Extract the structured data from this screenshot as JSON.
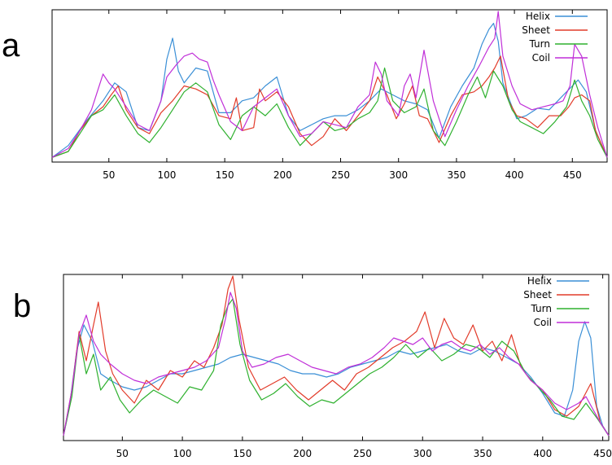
{
  "panels": [
    {
      "letter": "a"
    },
    {
      "letter": "b"
    }
  ],
  "chart_data": [
    {
      "type": "line",
      "title": "",
      "xlabel": "",
      "ylabel": "",
      "xlim": [
        1,
        480
      ],
      "ylim": [
        0,
        1
      ],
      "xticks": [
        50,
        100,
        150,
        200,
        250,
        300,
        350,
        400,
        450
      ],
      "grid": false,
      "legend_position": "top-right",
      "series": [
        {
          "name": "Helix",
          "color": "#3a8fd6",
          "x": [
            1,
            15,
            30,
            45,
            55,
            65,
            75,
            85,
            95,
            100,
            105,
            110,
            115,
            125,
            135,
            145,
            155,
            165,
            175,
            185,
            195,
            205,
            215,
            225,
            235,
            245,
            255,
            265,
            275,
            285,
            295,
            305,
            315,
            325,
            335,
            345,
            355,
            365,
            372,
            378,
            382,
            386,
            390,
            396,
            402,
            410,
            420,
            430,
            440,
            450,
            455,
            462,
            470,
            480
          ],
          "y": [
            0.02,
            0.1,
            0.26,
            0.4,
            0.52,
            0.46,
            0.22,
            0.2,
            0.4,
            0.68,
            0.82,
            0.6,
            0.52,
            0.62,
            0.6,
            0.32,
            0.32,
            0.4,
            0.42,
            0.5,
            0.56,
            0.3,
            0.2,
            0.24,
            0.28,
            0.3,
            0.3,
            0.34,
            0.4,
            0.48,
            0.44,
            0.4,
            0.38,
            0.34,
            0.15,
            0.36,
            0.5,
            0.62,
            0.78,
            0.88,
            0.92,
            0.8,
            0.52,
            0.4,
            0.28,
            0.3,
            0.35,
            0.34,
            0.42,
            0.5,
            0.54,
            0.46,
            0.2,
            0.02
          ]
        },
        {
          "name": "Sheet",
          "color": "#e23b2a",
          "x": [
            1,
            15,
            25,
            35,
            45,
            52,
            58,
            65,
            75,
            85,
            95,
            105,
            115,
            125,
            135,
            145,
            155,
            160,
            165,
            175,
            180,
            185,
            195,
            205,
            215,
            225,
            235,
            245,
            255,
            265,
            275,
            282,
            290,
            298,
            305,
            312,
            318,
            325,
            335,
            345,
            355,
            365,
            372,
            378,
            383,
            388,
            395,
            402,
            410,
            420,
            430,
            440,
            447,
            452,
            458,
            465,
            470,
            480
          ],
          "y": [
            0.02,
            0.06,
            0.2,
            0.3,
            0.36,
            0.44,
            0.5,
            0.34,
            0.22,
            0.18,
            0.32,
            0.4,
            0.5,
            0.48,
            0.44,
            0.3,
            0.28,
            0.42,
            0.2,
            0.22,
            0.48,
            0.4,
            0.46,
            0.36,
            0.18,
            0.1,
            0.16,
            0.28,
            0.2,
            0.3,
            0.4,
            0.56,
            0.44,
            0.28,
            0.38,
            0.5,
            0.3,
            0.28,
            0.12,
            0.3,
            0.44,
            0.46,
            0.5,
            0.56,
            0.62,
            0.7,
            0.4,
            0.3,
            0.28,
            0.22,
            0.3,
            0.3,
            0.36,
            0.42,
            0.44,
            0.4,
            0.2,
            0.02
          ]
        },
        {
          "name": "Turn",
          "color": "#2fb12f",
          "x": [
            1,
            15,
            25,
            35,
            45,
            55,
            65,
            75,
            85,
            95,
            105,
            115,
            125,
            135,
            145,
            155,
            165,
            175,
            185,
            195,
            205,
            215,
            225,
            235,
            245,
            255,
            265,
            275,
            282,
            288,
            295,
            305,
            315,
            322,
            330,
            340,
            350,
            360,
            368,
            375,
            382,
            390,
            398,
            405,
            415,
            425,
            435,
            445,
            452,
            458,
            465,
            472,
            480
          ],
          "y": [
            0.02,
            0.06,
            0.18,
            0.3,
            0.34,
            0.44,
            0.3,
            0.18,
            0.12,
            0.22,
            0.34,
            0.46,
            0.52,
            0.46,
            0.24,
            0.14,
            0.3,
            0.36,
            0.3,
            0.38,
            0.22,
            0.1,
            0.18,
            0.26,
            0.2,
            0.22,
            0.28,
            0.32,
            0.4,
            0.62,
            0.4,
            0.32,
            0.36,
            0.48,
            0.2,
            0.1,
            0.26,
            0.44,
            0.56,
            0.42,
            0.6,
            0.5,
            0.34,
            0.26,
            0.22,
            0.18,
            0.26,
            0.36,
            0.54,
            0.4,
            0.3,
            0.14,
            0.02
          ]
        },
        {
          "name": "Coil",
          "color": "#c02fd8",
          "x": [
            1,
            15,
            25,
            35,
            45,
            50,
            55,
            65,
            75,
            85,
            95,
            100,
            108,
            115,
            122,
            128,
            135,
            140,
            145,
            155,
            165,
            175,
            185,
            195,
            205,
            215,
            225,
            235,
            245,
            255,
            265,
            275,
            280,
            285,
            290,
            300,
            305,
            310,
            315,
            322,
            330,
            340,
            350,
            360,
            370,
            378,
            383,
            386,
            390,
            398,
            405,
            415,
            425,
            435,
            442,
            448,
            452,
            458,
            465,
            472,
            480
          ],
          "y": [
            0.02,
            0.08,
            0.2,
            0.34,
            0.58,
            0.52,
            0.48,
            0.36,
            0.24,
            0.2,
            0.4,
            0.56,
            0.64,
            0.7,
            0.72,
            0.68,
            0.66,
            0.54,
            0.44,
            0.26,
            0.2,
            0.36,
            0.42,
            0.48,
            0.3,
            0.16,
            0.18,
            0.26,
            0.24,
            0.22,
            0.36,
            0.44,
            0.66,
            0.58,
            0.4,
            0.3,
            0.5,
            0.58,
            0.42,
            0.74,
            0.4,
            0.16,
            0.34,
            0.5,
            0.64,
            0.76,
            0.82,
            1.0,
            0.7,
            0.5,
            0.38,
            0.34,
            0.36,
            0.38,
            0.4,
            0.5,
            0.78,
            0.7,
            0.44,
            0.22,
            0.02
          ]
        }
      ]
    },
    {
      "type": "line",
      "title": "",
      "xlabel": "",
      "ylabel": "",
      "xlim": [
        1,
        455
      ],
      "ylim": [
        0,
        1
      ],
      "xticks": [
        50,
        100,
        150,
        200,
        250,
        300,
        350,
        400,
        450
      ],
      "grid": false,
      "legend_position": "top-right",
      "series": [
        {
          "name": "Helix",
          "color": "#3a8fd6",
          "x": [
            1,
            6,
            12,
            18,
            25,
            32,
            40,
            50,
            60,
            70,
            80,
            90,
            100,
            110,
            120,
            130,
            140,
            150,
            160,
            170,
            180,
            190,
            200,
            210,
            220,
            230,
            240,
            250,
            260,
            270,
            280,
            290,
            300,
            310,
            320,
            330,
            340,
            350,
            360,
            370,
            380,
            390,
            400,
            410,
            418,
            425,
            430,
            435,
            440,
            445,
            450,
            455
          ],
          "y": [
            0.02,
            0.2,
            0.54,
            0.7,
            0.6,
            0.4,
            0.36,
            0.32,
            0.3,
            0.32,
            0.36,
            0.4,
            0.4,
            0.42,
            0.44,
            0.46,
            0.5,
            0.52,
            0.5,
            0.48,
            0.46,
            0.42,
            0.4,
            0.4,
            0.38,
            0.4,
            0.44,
            0.46,
            0.48,
            0.5,
            0.54,
            0.52,
            0.54,
            0.56,
            0.58,
            0.54,
            0.52,
            0.56,
            0.54,
            0.5,
            0.46,
            0.38,
            0.28,
            0.16,
            0.14,
            0.3,
            0.6,
            0.72,
            0.62,
            0.2,
            0.08,
            0.02
          ]
        },
        {
          "name": "Sheet",
          "color": "#e23b2a",
          "x": [
            1,
            8,
            14,
            20,
            26,
            30,
            36,
            42,
            50,
            60,
            70,
            80,
            90,
            100,
            110,
            118,
            126,
            133,
            138,
            142,
            147,
            155,
            165,
            175,
            185,
            195,
            205,
            215,
            225,
            235,
            245,
            255,
            265,
            275,
            285,
            295,
            302,
            310,
            318,
            326,
            334,
            342,
            350,
            358,
            366,
            374,
            382,
            390,
            400,
            410,
            420,
            430,
            440,
            448,
            455
          ],
          "y": [
            0.02,
            0.3,
            0.66,
            0.48,
            0.7,
            0.84,
            0.54,
            0.4,
            0.3,
            0.22,
            0.36,
            0.3,
            0.42,
            0.38,
            0.48,
            0.44,
            0.56,
            0.7,
            0.92,
            1.0,
            0.74,
            0.44,
            0.3,
            0.34,
            0.38,
            0.3,
            0.24,
            0.3,
            0.36,
            0.3,
            0.4,
            0.44,
            0.5,
            0.56,
            0.6,
            0.66,
            0.78,
            0.56,
            0.74,
            0.62,
            0.58,
            0.7,
            0.54,
            0.6,
            0.48,
            0.64,
            0.44,
            0.36,
            0.3,
            0.18,
            0.14,
            0.2,
            0.34,
            0.1,
            0.02
          ]
        },
        {
          "name": "Turn",
          "color": "#2fb12f",
          "x": [
            1,
            8,
            14,
            20,
            26,
            32,
            40,
            48,
            56,
            66,
            76,
            86,
            96,
            106,
            116,
            126,
            132,
            138,
            142,
            148,
            156,
            166,
            176,
            186,
            196,
            206,
            216,
            226,
            236,
            246,
            256,
            266,
            276,
            286,
            296,
            306,
            316,
            326,
            336,
            346,
            356,
            366,
            376,
            386,
            396,
            406,
            416,
            426,
            436,
            446,
            455
          ],
          "y": [
            0.02,
            0.26,
            0.64,
            0.4,
            0.52,
            0.3,
            0.38,
            0.24,
            0.16,
            0.24,
            0.3,
            0.26,
            0.22,
            0.32,
            0.3,
            0.42,
            0.7,
            0.82,
            0.86,
            0.58,
            0.36,
            0.24,
            0.28,
            0.34,
            0.26,
            0.2,
            0.24,
            0.22,
            0.28,
            0.34,
            0.4,
            0.44,
            0.5,
            0.58,
            0.5,
            0.56,
            0.48,
            0.52,
            0.58,
            0.56,
            0.5,
            0.6,
            0.54,
            0.4,
            0.32,
            0.24,
            0.14,
            0.12,
            0.22,
            0.12,
            0.02
          ]
        },
        {
          "name": "Coil",
          "color": "#c02fd8",
          "x": [
            1,
            8,
            14,
            20,
            26,
            32,
            40,
            50,
            60,
            70,
            80,
            90,
            100,
            110,
            120,
            130,
            136,
            140,
            145,
            150,
            158,
            168,
            178,
            188,
            198,
            208,
            218,
            228,
            238,
            248,
            258,
            268,
            276,
            284,
            292,
            300,
            308,
            316,
            324,
            332,
            340,
            348,
            356,
            364,
            372,
            380,
            390,
            400,
            410,
            420,
            430,
            436,
            442,
            448,
            455
          ],
          "y": [
            0.02,
            0.3,
            0.64,
            0.76,
            0.6,
            0.52,
            0.46,
            0.4,
            0.36,
            0.34,
            0.38,
            0.4,
            0.42,
            0.44,
            0.48,
            0.56,
            0.74,
            0.9,
            0.8,
            0.54,
            0.44,
            0.46,
            0.5,
            0.52,
            0.48,
            0.44,
            0.42,
            0.4,
            0.44,
            0.46,
            0.5,
            0.56,
            0.62,
            0.6,
            0.58,
            0.62,
            0.54,
            0.58,
            0.6,
            0.56,
            0.54,
            0.58,
            0.52,
            0.56,
            0.5,
            0.46,
            0.36,
            0.3,
            0.22,
            0.18,
            0.22,
            0.26,
            0.18,
            0.1,
            0.02
          ]
        }
      ]
    }
  ]
}
